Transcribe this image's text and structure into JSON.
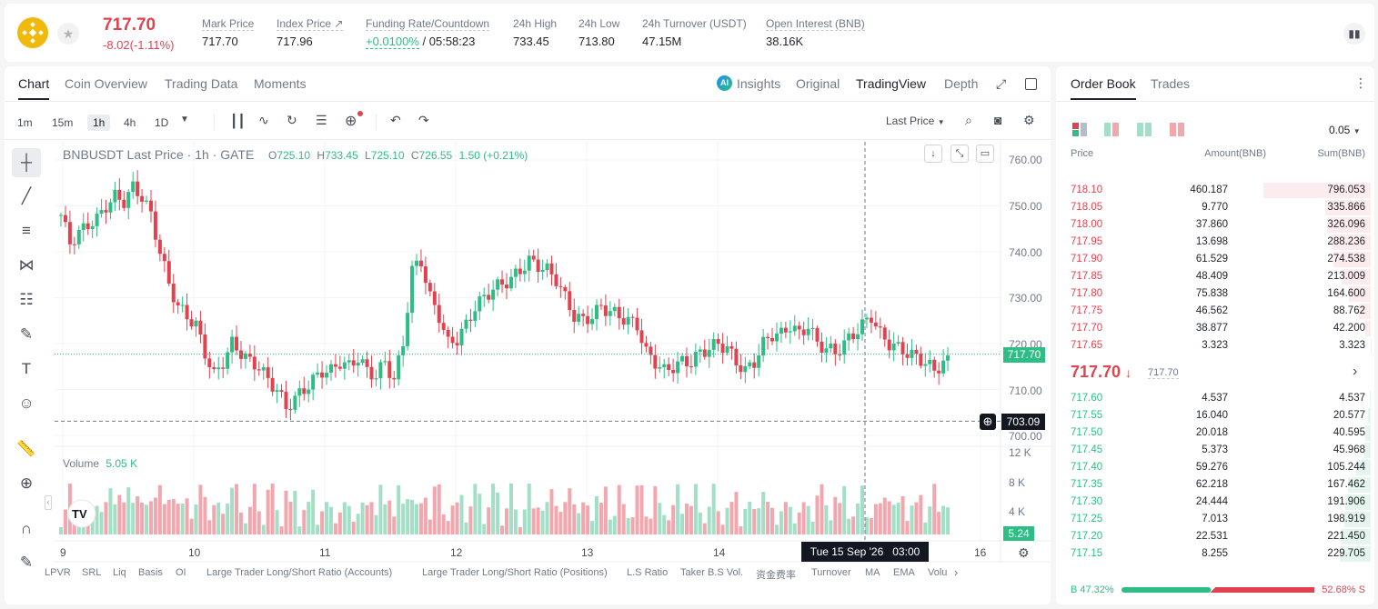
{
  "ticker": {
    "price": "717.70",
    "change": "-8.02(-1.11%)",
    "stats": [
      {
        "label": "Mark Price",
        "value": "717.70"
      },
      {
        "label": "Index Price ↗",
        "value": "717.96"
      },
      {
        "label": "Funding Rate/Countdown",
        "value": "+0.0100%",
        "value2": " / 05:58:23"
      },
      {
        "label": "24h High",
        "value": "733.45"
      },
      {
        "label": "24h Low",
        "value": "713.80"
      },
      {
        "label": "24h Turnover (USDT)",
        "value": "47.15M"
      },
      {
        "label": "Open Interest (BNB)",
        "value": "38.16K"
      }
    ]
  },
  "chart_tabs": [
    "Chart",
    "Coin Overview",
    "Trading Data",
    "Moments"
  ],
  "view_tabs": {
    "insights": "Insights",
    "original": "Original",
    "tradingview": "TradingView",
    "depth": "Depth"
  },
  "timeframes": [
    "1m",
    "15m",
    "1h",
    "4h",
    "1D"
  ],
  "price_source": "Last Price",
  "legend": {
    "symbol": "BNBUSDT Last Price · 1h · GATE",
    "o_label": "O",
    "o": "725.10",
    "h_label": "H",
    "h": "733.45",
    "l_label": "L",
    "l": "725.10",
    "c_label": "C",
    "c": "726.55",
    "chg": "1.50 (+0.21%)"
  },
  "volume_legend": {
    "label": "Volume",
    "value": "5.05 K"
  },
  "price_axis": [
    "760.00",
    "750.00",
    "740.00",
    "730.00",
    "720.00",
    "710.00",
    "700.00"
  ],
  "volume_axis": [
    "12 K",
    "8 K",
    "4 K"
  ],
  "current_price_tag": "717.70",
  "crosshair_price_tag": "703.09",
  "volume_tag": "5.24",
  "crosshair_time": "Tue 15 Sep '26   03:00",
  "time_axis": [
    "9",
    "10",
    "11",
    "12",
    "13",
    "14",
    "16"
  ],
  "indicators": [
    "LPVR",
    "SRL",
    "Liq",
    "Basis",
    "OI",
    "Large Trader Long/Short Ratio (Accounts)",
    "Large Trader Long/Short Ratio (Positions)",
    "L.S Ratio",
    "Taker B.S Vol.",
    "资金费率",
    "Turnover",
    "MA",
    "EMA",
    "Volu"
  ],
  "order_book": {
    "tabs": [
      "Order Book",
      "Trades"
    ],
    "precision": "0.05",
    "headers": {
      "price": "Price",
      "amount": "Amount(BNB)",
      "sum": "Sum(BNB)"
    },
    "asks": [
      {
        "price": "718.10",
        "amount": "460.187",
        "sum": "796.053"
      },
      {
        "price": "718.05",
        "amount": "9.770",
        "sum": "335.866"
      },
      {
        "price": "718.00",
        "amount": "37.860",
        "sum": "326.096"
      },
      {
        "price": "717.95",
        "amount": "13.698",
        "sum": "288.236"
      },
      {
        "price": "717.90",
        "amount": "61.529",
        "sum": "274.538"
      },
      {
        "price": "717.85",
        "amount": "48.409",
        "sum": "213.009"
      },
      {
        "price": "717.80",
        "amount": "75.838",
        "sum": "164.600"
      },
      {
        "price": "717.75",
        "amount": "46.562",
        "sum": "88.762"
      },
      {
        "price": "717.70",
        "amount": "38.877",
        "sum": "42.200"
      },
      {
        "price": "717.65",
        "amount": "3.323",
        "sum": "3.323"
      }
    ],
    "mid_price": "717.70",
    "mid_mark": "717.70",
    "bids": [
      {
        "price": "717.60",
        "amount": "4.537",
        "sum": "4.537"
      },
      {
        "price": "717.55",
        "amount": "16.040",
        "sum": "20.577"
      },
      {
        "price": "717.50",
        "amount": "20.018",
        "sum": "40.595"
      },
      {
        "price": "717.45",
        "amount": "5.373",
        "sum": "45.968"
      },
      {
        "price": "717.40",
        "amount": "59.276",
        "sum": "105.244"
      },
      {
        "price": "717.35",
        "amount": "62.218",
        "sum": "167.462"
      },
      {
        "price": "717.30",
        "amount": "24.444",
        "sum": "191.906"
      },
      {
        "price": "717.25",
        "amount": "7.013",
        "sum": "198.919"
      },
      {
        "price": "717.20",
        "amount": "22.531",
        "sum": "221.450"
      },
      {
        "price": "717.15",
        "amount": "8.255",
        "sum": "229.705"
      }
    ],
    "buy_ratio": "B 47.32%",
    "sell_ratio": "52.68% S",
    "buy_fraction": 0.4732
  },
  "colors": {
    "up": "#2ebd85",
    "down": "#e0434f",
    "up_light": "#a3dfc6",
    "down_light": "#f2a7ae"
  }
}
